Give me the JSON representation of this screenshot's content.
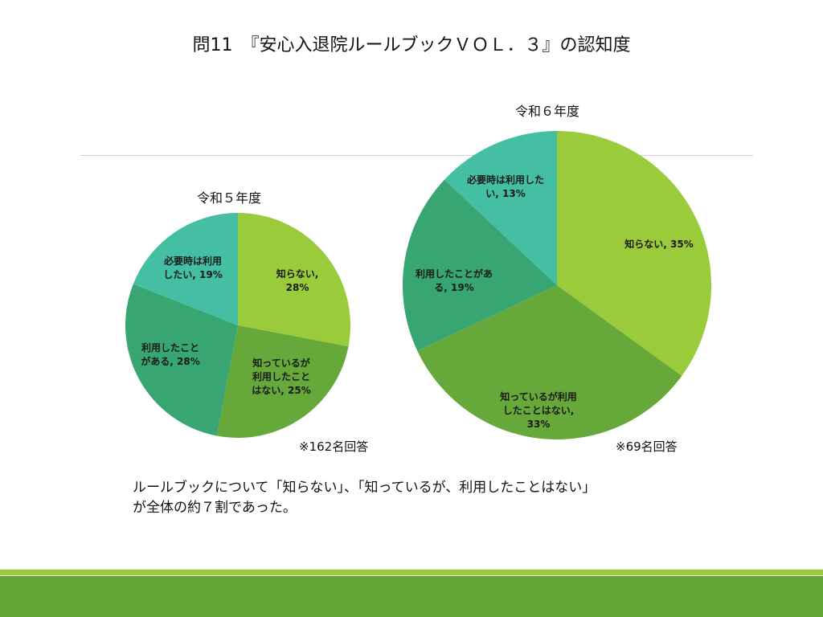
{
  "title": "問11　『安心入退院ルールブックＶＯＬ．３』の認知度",
  "chart_data": [
    {
      "type": "pie",
      "title": "令和５年度",
      "note": "※162名回答",
      "categories": [
        "知らない",
        "知っているが利用したことはない",
        "利用したことがある",
        "必要時は利用したい"
      ],
      "values": [
        28,
        25,
        28,
        19
      ],
      "unit": "%",
      "labels": [
        {
          "lines": [
            "知らない,",
            "28%"
          ]
        },
        {
          "lines": [
            "知っているが",
            "利用したこと",
            "はない, 25%"
          ]
        },
        {
          "lines": [
            "利用したこと",
            "がある, 28%"
          ]
        },
        {
          "lines": [
            "必要時は利用",
            "したい, 19%"
          ]
        }
      ]
    },
    {
      "type": "pie",
      "title": "令和６年度",
      "note": "※69名回答",
      "categories": [
        "知らない",
        "知っているが利用したことはない",
        "利用したことがある",
        "必要時は利用したい"
      ],
      "values": [
        35,
        33,
        19,
        13
      ],
      "unit": "%",
      "labels": [
        {
          "lines": [
            "知らない, 35%"
          ]
        },
        {
          "lines": [
            "知っているが利用",
            "したことはない,",
            "33%"
          ]
        },
        {
          "lines": [
            "利用したことがあ",
            "る, 19%"
          ]
        },
        {
          "lines": [
            "必要時は利用した",
            "い, 13%"
          ]
        }
      ]
    }
  ],
  "colors": [
    "#9acb3a",
    "#67a83a",
    "#38a673",
    "#44bfa3"
  ],
  "summary": [
    "ルールブックについて「知らない」、「知っているが、利用したことはない」",
    "が全体の約７割であった。"
  ]
}
